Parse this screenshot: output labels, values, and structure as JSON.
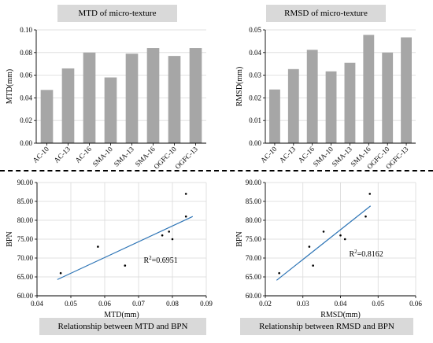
{
  "captions": [
    "MTD of micro-texture",
    "RMSD of micro-texture",
    "Relationship between MTD and BPN",
    "Relationship between RMSD and BPN"
  ],
  "colors": {
    "bar": "#a6a6a6",
    "trend": "#2e75b6",
    "axis": "#000000",
    "grid": "#d9d9d9",
    "caption_bg": "#d9d9d9"
  },
  "chart_data": [
    {
      "type": "bar",
      "ylabel": "MTD(mm)",
      "categories": [
        "AC-10",
        "AC-13",
        "AC-16",
        "SMA-10",
        "SMA-13",
        "SMA-16",
        "OGFC-10",
        "OGFC-13"
      ],
      "values": [
        0.047,
        0.066,
        0.08,
        0.058,
        0.079,
        0.084,
        0.077,
        0.084
      ],
      "ylim": [
        0,
        0.1
      ],
      "yticks": [
        "0.00",
        "0.02",
        "0.04",
        "0.06",
        "0.08",
        "0.10"
      ],
      "grid": true
    },
    {
      "type": "bar",
      "ylabel": "RMSD(mm)",
      "categories": [
        "AC-10",
        "AC-13",
        "AC-16",
        "SMA-10",
        "SMA-13",
        "SMA-16",
        "OGFC-10",
        "OGFC-13"
      ],
      "values": [
        0.0237,
        0.0327,
        0.0412,
        0.0317,
        0.0355,
        0.0478,
        0.04,
        0.0467
      ],
      "ylim": [
        0,
        0.05
      ],
      "yticks": [
        "0.00",
        "0.01",
        "0.02",
        "0.03",
        "0.04",
        "0.05"
      ],
      "grid": true
    },
    {
      "type": "scatter",
      "xlabel": "MTD(mm)",
      "ylabel": "BPN",
      "x": [
        0.047,
        0.058,
        0.066,
        0.077,
        0.079,
        0.08,
        0.084,
        0.084
      ],
      "y": [
        66,
        73,
        68,
        76,
        77,
        75,
        87,
        81
      ],
      "xlim": [
        0.04,
        0.09
      ],
      "ylim": [
        60,
        90
      ],
      "xticks": [
        "0.04",
        "0.05",
        "0.06",
        "0.07",
        "0.08",
        "0.09"
      ],
      "yticks": [
        "60.00",
        "65.00",
        "70.00",
        "75.00",
        "80.00",
        "85.00",
        "90.00"
      ],
      "trendline": {
        "x": [
          0.046,
          0.086
        ],
        "y": [
          64.3,
          81.0
        ]
      },
      "annotation": {
        "prefix": "R",
        "sup": "2",
        "suffix": "=0.6951",
        "x": 0.0715,
        "y": 68.8
      },
      "grid": true
    },
    {
      "type": "scatter",
      "xlabel": "RMSD(mm)",
      "ylabel": "BPN",
      "x": [
        0.0237,
        0.0317,
        0.0327,
        0.0355,
        0.04,
        0.0412,
        0.0467,
        0.0478
      ],
      "y": [
        66,
        73,
        68,
        77,
        76,
        75,
        81,
        87
      ],
      "xlim": [
        0.02,
        0.06
      ],
      "ylim": [
        60,
        90
      ],
      "xticks": [
        "0.02",
        "0.03",
        "0.04",
        "0.05",
        "0.06"
      ],
      "yticks": [
        "60.00",
        "65.00",
        "70.00",
        "75.00",
        "80.00",
        "85.00",
        "90.00"
      ],
      "trendline": {
        "x": [
          0.023,
          0.048
        ],
        "y": [
          64.1,
          83.8
        ]
      },
      "annotation": {
        "prefix": "R",
        "sup": "2",
        "suffix": "=0.8162",
        "x": 0.0423,
        "y": 70.4
      },
      "grid": true
    }
  ]
}
